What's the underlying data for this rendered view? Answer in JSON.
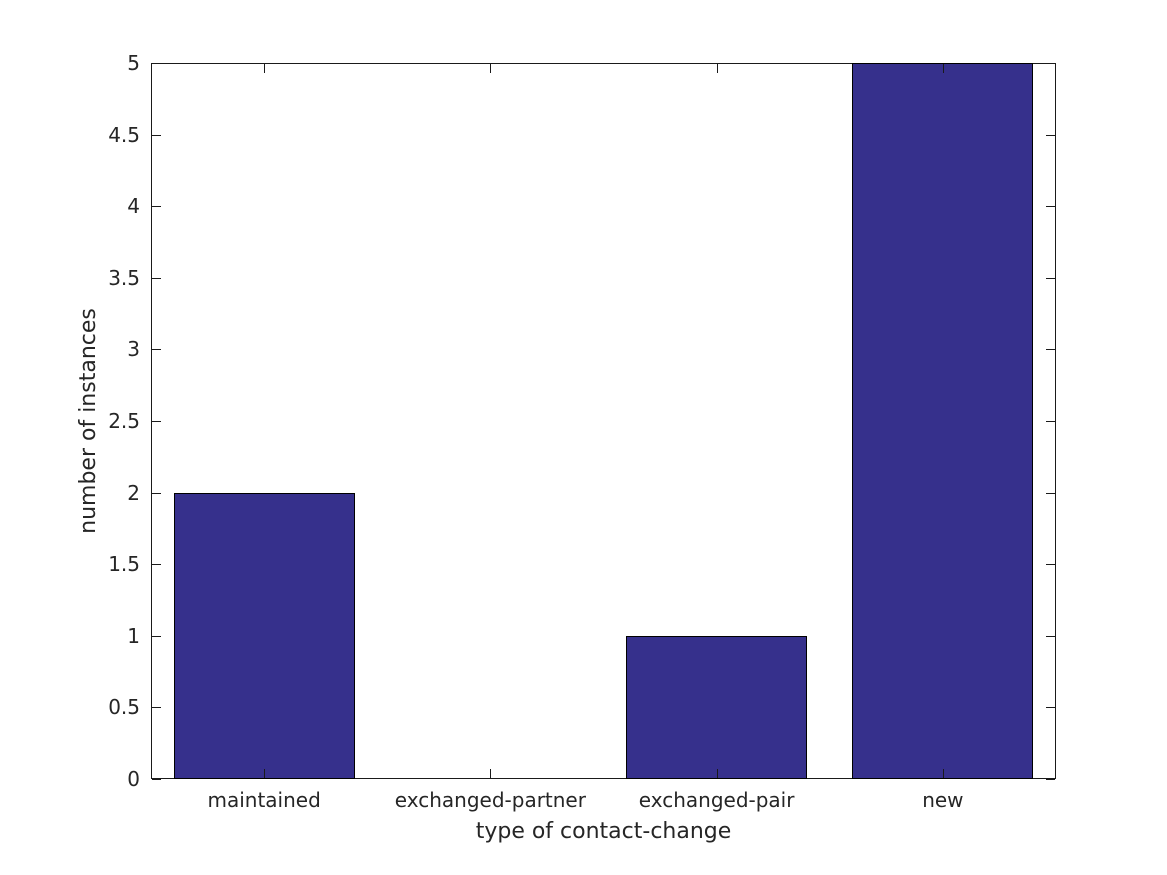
{
  "figure": {
    "background_color": "#ffffff"
  },
  "chart_data": {
    "type": "bar",
    "title": "",
    "categories": [
      "maintained",
      "exchanged-partner",
      "exchanged-pair",
      "new"
    ],
    "values": [
      2,
      0,
      1,
      5
    ],
    "xlabel": "type of contact-change",
    "ylabel": "number of instances",
    "ylim": [
      0,
      5
    ],
    "yticks": [
      0,
      0.5,
      1,
      1.5,
      2,
      2.5,
      3,
      3.5,
      4,
      4.5,
      5
    ],
    "ytick_labels": [
      "0",
      "0.5",
      "1",
      "1.5",
      "2",
      "2.5",
      "3",
      "3.5",
      "4",
      "4.5",
      "5"
    ],
    "bar_width_fraction": 0.8,
    "bar_fill_color": "#36308c",
    "bar_edge_color": "#000000",
    "axis_color": "#1a1a1a",
    "text_color": "#262626",
    "grid": false,
    "box": true,
    "tick_direction": "in",
    "legend_position": "none"
  }
}
